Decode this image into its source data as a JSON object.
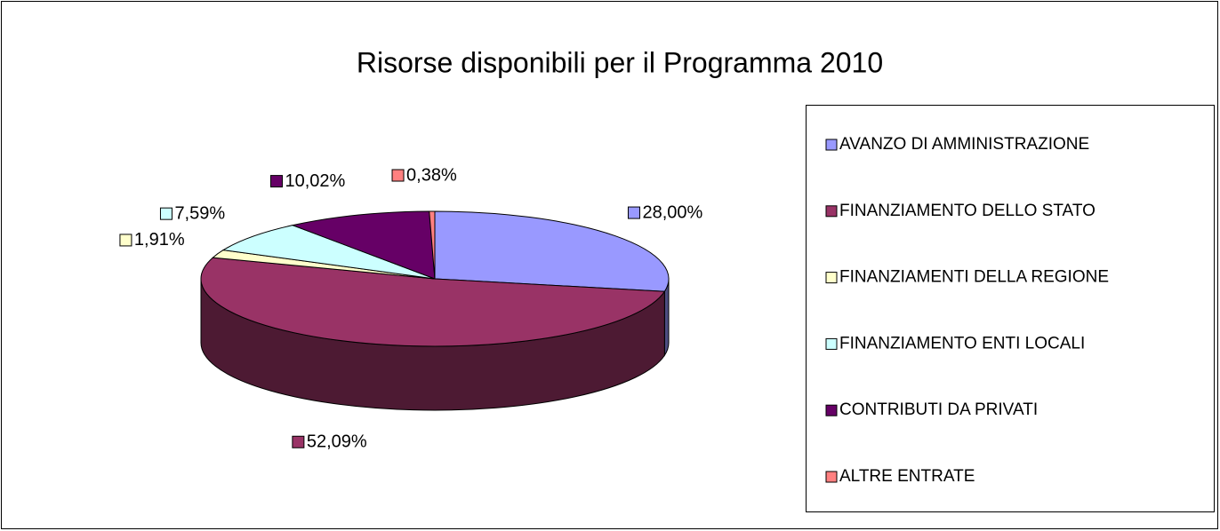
{
  "chart_data": {
    "type": "pie",
    "title": "Risorse disponibili per il Programma 2010",
    "categories": [
      "AVANZO DI AMMINISTRAZIONE",
      "FINANZIAMENTO DELLO STATO",
      "FINANZIAMENTI DELLA REGIONE",
      "FINANZIAMENTO ENTI LOCALI",
      "CONTRIBUTI DA PRIVATI",
      "ALTRE ENTRATE"
    ],
    "values": [
      28.0,
      52.09,
      1.91,
      7.59,
      10.02,
      0.38
    ],
    "value_labels": [
      "28,00%",
      "52,09%",
      "1,91%",
      "7,59%",
      "10,02%",
      "0,38%"
    ],
    "colors": [
      "#9999ff",
      "#993366",
      "#ffffcc",
      "#ccffff",
      "#660066",
      "#ff8080"
    ],
    "legend": "right"
  }
}
